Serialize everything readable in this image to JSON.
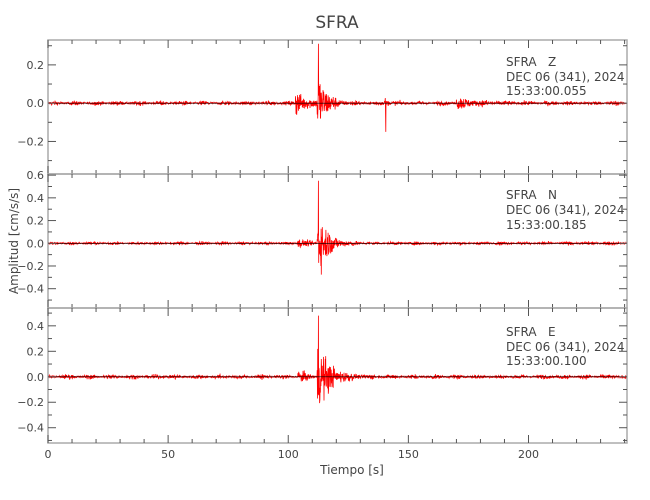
{
  "chart_data": [
    {
      "type": "line",
      "title": "SFRA",
      "station_label": "SFRA   Z",
      "date_label": "DEC 06 (341), 2024",
      "time_label": "15:33:00.055",
      "xlim": [
        0,
        241
      ],
      "ylim": [
        -0.37,
        0.33
      ],
      "yticks": [
        "0.2",
        "0.0",
        "-0.2"
      ],
      "ytick_values": [
        0.2,
        0.0,
        -0.2
      ],
      "color": "#ff0000",
      "noise_level": 0.008,
      "events": [
        {
          "time": 103,
          "duration": 12,
          "peak": 0.12
        },
        {
          "time": 112,
          "duration": 10,
          "peak": 0.31,
          "min": -0.36
        },
        {
          "time": 140,
          "duration": 2,
          "peak": 0.16,
          "min": -0.15
        },
        {
          "time": 170,
          "duration": 20,
          "peak": 0.05
        }
      ]
    },
    {
      "type": "line",
      "station_label": "SFRA   N",
      "date_label": "DEC 06 (341), 2024",
      "time_label": "15:33:00.185",
      "xlim": [
        0,
        241
      ],
      "ylim": [
        -0.57,
        0.61
      ],
      "yticks": [
        "0.6",
        "0.4",
        "0.2",
        "0.0",
        "-0.2",
        "-0.4"
      ],
      "ytick_values": [
        0.6,
        0.4,
        0.2,
        0.0,
        -0.2,
        -0.4
      ],
      "color": "#ff0000",
      "noise_level": 0.01,
      "events": [
        {
          "time": 104,
          "duration": 8,
          "peak": 0.08
        },
        {
          "time": 112,
          "duration": 12,
          "peak": 0.55,
          "min": -0.55
        }
      ]
    },
    {
      "type": "line",
      "station_label": "SFRA   E",
      "date_label": "DEC 06 (341), 2024",
      "time_label": "15:33:00.100",
      "xlim": [
        0,
        241
      ],
      "ylim": [
        -0.52,
        0.54
      ],
      "yticks": [
        "0.4",
        "0.2",
        "0.0",
        "-0.2",
        "-0.4"
      ],
      "ytick_values": [
        0.4,
        0.2,
        0.0,
        -0.2,
        -0.4
      ],
      "color": "#ff0000",
      "noise_level": 0.012,
      "events": [
        {
          "time": 104,
          "duration": 8,
          "peak": 0.09
        },
        {
          "time": 112,
          "duration": 14,
          "peak": 0.48,
          "min": -0.5
        }
      ]
    }
  ],
  "xlabel": "Tiempo [s]",
  "ylabel": "Amplitud [cm/s/s]",
  "xticks": [
    "0",
    "50",
    "100",
    "150",
    "200"
  ],
  "xtick_values": [
    0,
    50,
    100,
    150,
    200
  ]
}
